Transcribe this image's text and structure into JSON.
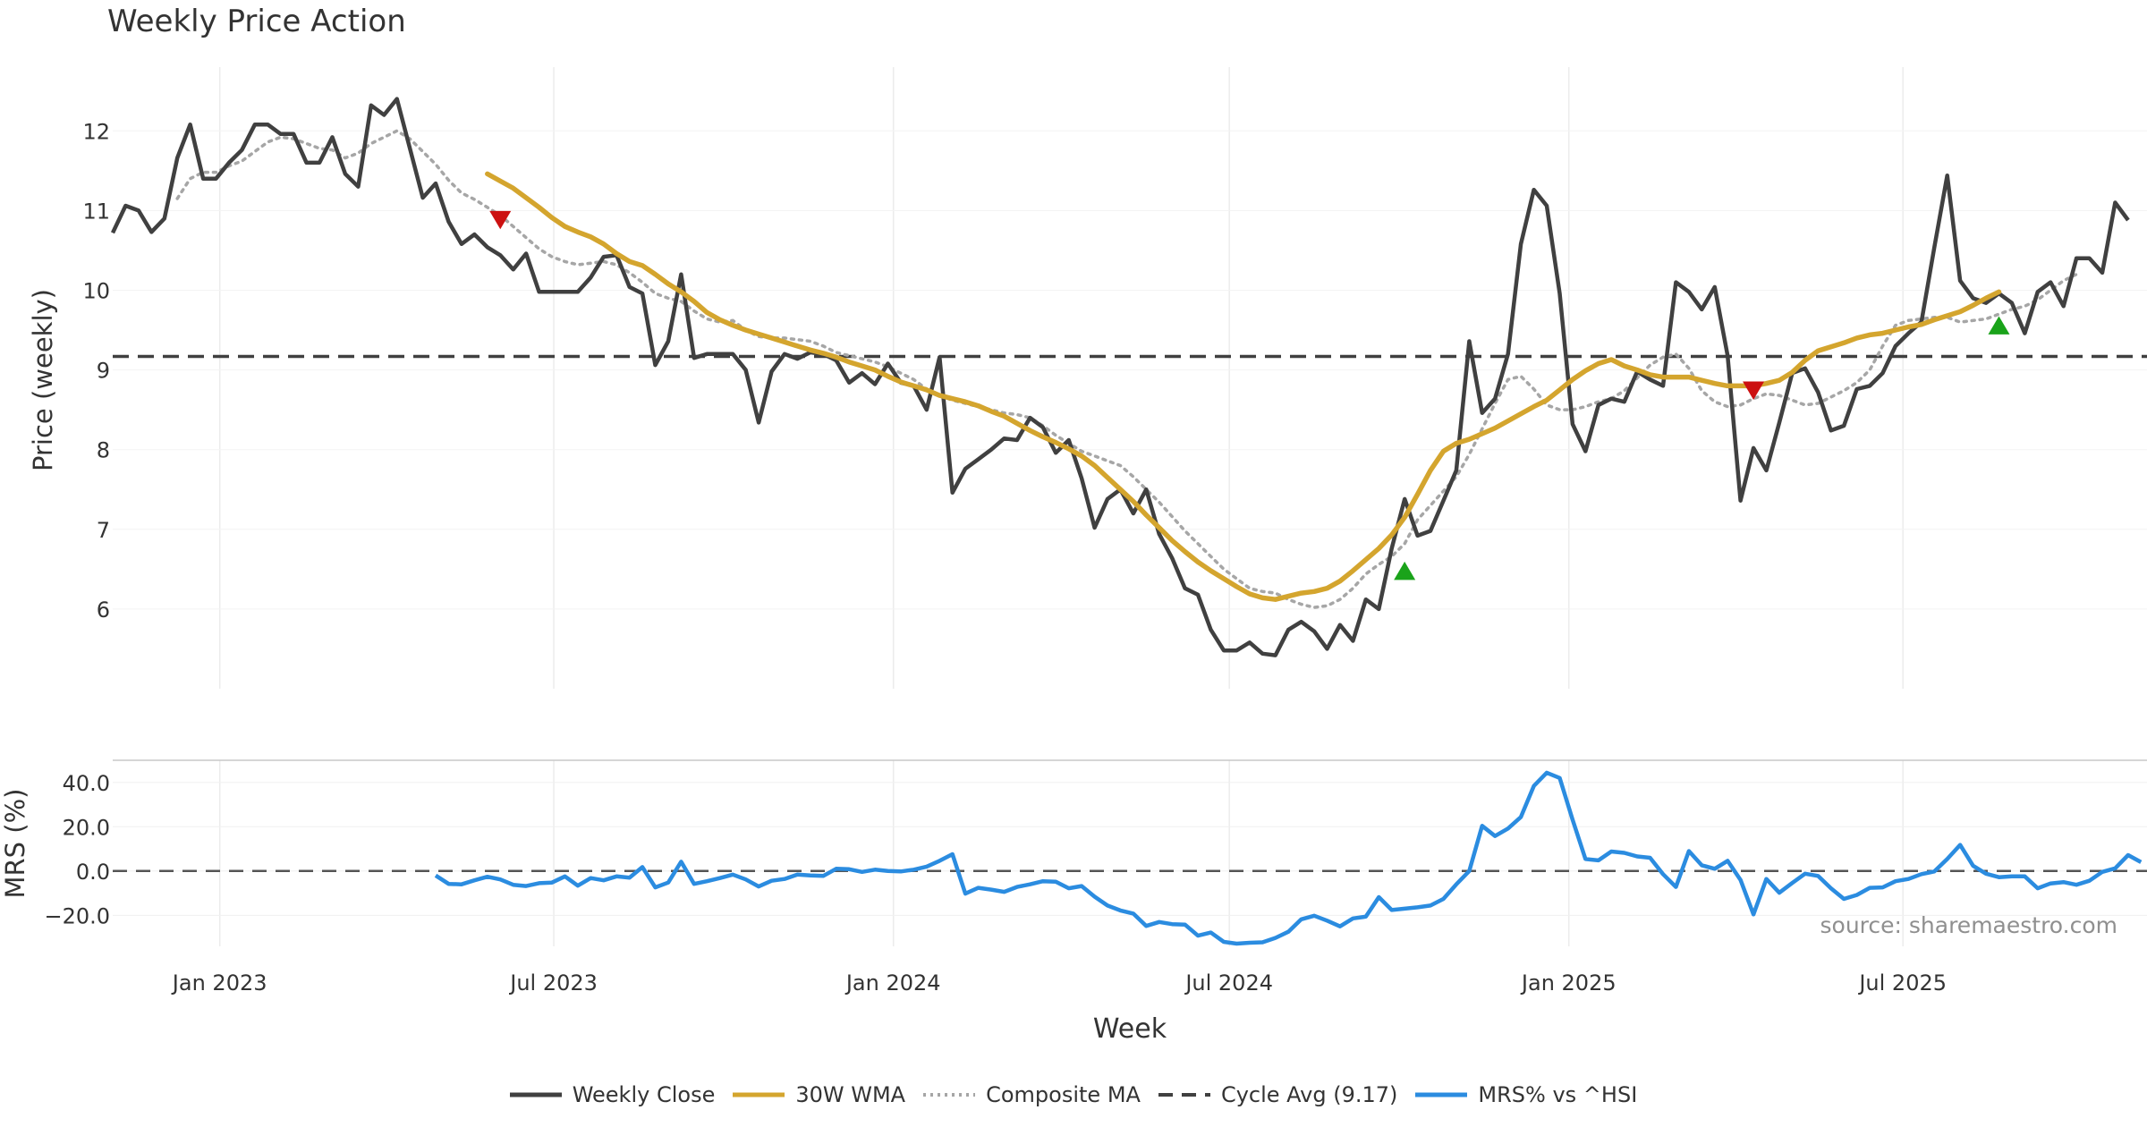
{
  "chart_data": [
    {
      "type": "line",
      "title": "Weekly Price Action",
      "ylabel": "Price (weekly)",
      "ylim": [
        5.0,
        12.8
      ],
      "yticks": [
        6,
        7,
        8,
        9,
        10,
        11,
        12
      ],
      "grid": true,
      "x_start": "2022-11-04",
      "x_step_days": 7,
      "series": [
        {
          "name": "Weekly Close",
          "color": "#404040",
          "style": "solid",
          "values": [
            10.72,
            11.06,
            11.0,
            10.73,
            10.9,
            11.66,
            12.08,
            11.4,
            11.4,
            11.6,
            11.76,
            12.08,
            12.08,
            11.96,
            11.96,
            11.6,
            11.6,
            11.92,
            11.46,
            11.3,
            12.32,
            12.2,
            12.4,
            11.78,
            11.16,
            11.34,
            10.86,
            10.58,
            10.7,
            10.54,
            10.44,
            10.26,
            10.46,
            9.98,
            9.98,
            9.98,
            9.98,
            10.16,
            10.42,
            10.44,
            10.04,
            9.96,
            9.06,
            9.36,
            10.2,
            9.15,
            9.2,
            9.2,
            9.2,
            9.0,
            8.34,
            8.98,
            9.2,
            9.14,
            9.22,
            9.2,
            9.12,
            8.84,
            8.96,
            8.82,
            9.08,
            8.84,
            8.8,
            8.5,
            9.16,
            7.46,
            7.76,
            7.88,
            8.0,
            8.14,
            8.12,
            8.4,
            8.28,
            7.96,
            8.12,
            7.64,
            7.02,
            7.38,
            7.5,
            7.2,
            7.5,
            6.94,
            6.64,
            6.26,
            6.18,
            5.74,
            5.48,
            5.48,
            5.58,
            5.44,
            5.42,
            5.74,
            5.84,
            5.72,
            5.5,
            5.8,
            5.6,
            6.12,
            6.0,
            6.76,
            7.38,
            6.92,
            6.98,
            7.36,
            7.74,
            9.36,
            8.46,
            8.64,
            9.2,
            10.58,
            11.26,
            11.06,
            9.96,
            8.32,
            7.98,
            8.56,
            8.64,
            8.6,
            8.98,
            8.88,
            8.8,
            10.1,
            9.98,
            9.76,
            10.04,
            9.18,
            7.36,
            8.02,
            7.74,
            8.34,
            8.96,
            9.02,
            8.72,
            8.24,
            8.3,
            8.76,
            8.8,
            8.96,
            9.3,
            9.46,
            9.6,
            10.54,
            11.44,
            10.12,
            9.9,
            9.84,
            9.96,
            9.84,
            9.46,
            9.98,
            10.1,
            9.8,
            10.4,
            10.4,
            10.22,
            11.1,
            10.88
          ]
        },
        {
          "name": "30W WMA",
          "color": "#d4a52e",
          "style": "solid",
          "values": [
            null,
            null,
            null,
            null,
            null,
            null,
            null,
            null,
            null,
            null,
            null,
            null,
            null,
            null,
            null,
            null,
            null,
            null,
            null,
            null,
            null,
            null,
            null,
            null,
            null,
            null,
            null,
            null,
            null,
            11.46,
            11.37,
            11.28,
            11.16,
            11.04,
            10.91,
            10.8,
            10.73,
            10.67,
            10.58,
            10.46,
            10.36,
            10.31,
            10.2,
            10.08,
            9.98,
            9.86,
            9.72,
            9.63,
            9.56,
            9.5,
            9.45,
            9.4,
            9.35,
            9.3,
            9.25,
            9.21,
            9.16,
            9.1,
            9.05,
            9.0,
            8.92,
            8.85,
            8.8,
            8.75,
            8.68,
            8.64,
            8.6,
            8.55,
            8.48,
            8.42,
            8.33,
            8.24,
            8.16,
            8.09,
            8.01,
            7.92,
            7.8,
            7.65,
            7.5,
            7.35,
            7.18,
            7.02,
            6.86,
            6.72,
            6.59,
            6.48,
            6.38,
            6.28,
            6.19,
            6.14,
            6.12,
            6.16,
            6.2,
            6.22,
            6.26,
            6.35,
            6.48,
            6.62,
            6.76,
            6.93,
            7.15,
            7.44,
            7.74,
            7.98,
            8.08,
            8.13,
            8.2,
            8.27,
            8.36,
            8.45,
            8.54,
            8.62,
            8.75,
            8.88,
            8.99,
            9.08,
            9.13,
            9.05,
            9.0,
            8.94,
            8.91,
            8.91,
            8.91,
            8.87,
            8.83,
            8.8,
            8.8,
            8.8,
            8.83,
            8.87,
            8.97,
            9.12,
            9.24,
            9.29,
            9.34,
            9.4,
            9.44,
            9.46,
            9.5,
            9.54,
            9.57,
            9.63,
            9.68,
            9.73,
            9.81,
            9.9,
            9.98
          ]
        },
        {
          "name": "Composite MA",
          "color": "#a6a6a6",
          "style": "dotted",
          "values": [
            null,
            null,
            null,
            null,
            null,
            11.15,
            11.4,
            11.48,
            11.48,
            11.56,
            11.62,
            11.74,
            11.86,
            11.92,
            11.9,
            11.84,
            11.78,
            11.76,
            11.66,
            11.72,
            11.84,
            11.92,
            12.0,
            11.9,
            11.74,
            11.58,
            11.38,
            11.22,
            11.14,
            11.04,
            10.94,
            10.8,
            10.66,
            10.52,
            10.42,
            10.36,
            10.32,
            10.34,
            10.36,
            10.32,
            10.22,
            10.1,
            9.96,
            9.9,
            9.86,
            9.74,
            9.64,
            9.6,
            9.62,
            9.5,
            9.42,
            9.4,
            9.4,
            9.38,
            9.36,
            9.3,
            9.22,
            9.18,
            9.14,
            9.1,
            9.04,
            8.96,
            8.88,
            8.76,
            8.68,
            8.62,
            8.58,
            8.54,
            8.5,
            8.46,
            8.44,
            8.4,
            8.3,
            8.18,
            8.08,
            7.98,
            7.92,
            7.86,
            7.8,
            7.66,
            7.5,
            7.34,
            7.16,
            6.98,
            6.82,
            6.66,
            6.5,
            6.38,
            6.26,
            6.22,
            6.2,
            6.12,
            6.06,
            6.02,
            6.04,
            6.12,
            6.26,
            6.44,
            6.56,
            6.66,
            6.82,
            7.12,
            7.3,
            7.48,
            7.66,
            7.94,
            8.26,
            8.58,
            8.88,
            8.92,
            8.76,
            8.56,
            8.5,
            8.5,
            8.54,
            8.6,
            8.64,
            8.74,
            8.9,
            9.06,
            9.16,
            9.2,
            9.02,
            8.74,
            8.6,
            8.54,
            8.56,
            8.64,
            8.7,
            8.68,
            8.62,
            8.56,
            8.58,
            8.66,
            8.74,
            8.84,
            9.0,
            9.3,
            9.56,
            9.62,
            9.64,
            9.66,
            9.66,
            9.6,
            9.62,
            9.64,
            9.7,
            9.76,
            9.8,
            9.88,
            10.0,
            10.12,
            10.2
          ]
        },
        {
          "name": "Cycle Avg (9.17)",
          "color": "#404040",
          "style": "dashed",
          "value": 9.17
        }
      ],
      "markers": [
        {
          "type": "sell",
          "color": "#cc1111",
          "week_index": 30,
          "value": 10.88
        },
        {
          "type": "buy",
          "color": "#1aa31a",
          "week_index": 100,
          "value": 6.48
        },
        {
          "type": "sell",
          "color": "#cc1111",
          "week_index": 127,
          "value": 8.74
        },
        {
          "type": "buy",
          "color": "#1aa31a",
          "week_index": 146,
          "value": 9.56
        }
      ]
    },
    {
      "type": "line",
      "ylabel": "MRS (%)",
      "ylim": [
        -34,
        50
      ],
      "yticks": [
        -20.0,
        0.0,
        20.0,
        40.0
      ],
      "ytick_labels": [
        "−20.0",
        "0.0",
        "20.0",
        "40.0"
      ],
      "grid": true,
      "reference_line": 0,
      "x_start": "2022-11-04",
      "x_step_days": 7,
      "series": [
        {
          "name": "MRS% vs ^HSI",
          "color": "#2b8ce0",
          "style": "solid",
          "values": [
            null,
            null,
            null,
            null,
            null,
            null,
            null,
            null,
            null,
            null,
            null,
            null,
            null,
            null,
            null,
            null,
            null,
            null,
            null,
            null,
            null,
            null,
            null,
            null,
            null,
            -2,
            -5.8,
            -6,
            -4.2,
            -2.6,
            -3.8,
            -6.2,
            -6.8,
            -5.5,
            -5.2,
            -2.4,
            -6.6,
            -3.2,
            -4.2,
            -2.4,
            -3,
            1.8,
            -7.4,
            -5.2,
            4.2,
            -5.8,
            -4.6,
            -3.2,
            -1.6,
            -3.8,
            -7,
            -4.4,
            -3.6,
            -1.6,
            -2,
            -2.2,
            1,
            0.8,
            -0.4,
            0.6,
            0,
            -0.2,
            0.6,
            2,
            4.6,
            7.6,
            -10.2,
            -7.6,
            -8.4,
            -9.4,
            -7.2,
            -6,
            -4.6,
            -4.8,
            -7.8,
            -6.8,
            -11.6,
            -15.6,
            -17.8,
            -19.2,
            -24.8,
            -23,
            -24,
            -24.2,
            -29.2,
            -27.8,
            -32,
            -32.8,
            -32.4,
            -32.2,
            -30.2,
            -27.4,
            -21.8,
            -20.2,
            -22.4,
            -25,
            -21.4,
            -20.6,
            -11.8,
            -17.6,
            -17,
            -16.4,
            -15.6,
            -12.6,
            -6,
            0,
            20.4,
            15.8,
            19.2,
            24.4,
            38.4,
            44.4,
            42,
            23.2,
            5.4,
            4.8,
            8.8,
            8.2,
            6.6,
            6,
            -1.4,
            -7.2,
            9,
            2.6,
            1,
            4.6,
            -4,
            -19.6,
            -3.6,
            -9.8,
            -5.4,
            -1.2,
            -2.2,
            -7.8,
            -12.6,
            -10.8,
            -7.6,
            -7.4,
            -4.6,
            -3.6,
            -1.4,
            -0.2,
            5.4,
            11.8,
            2.4,
            -1.2,
            -2.8,
            -2.4,
            -2.4,
            -7.8,
            -5.6,
            -5,
            -6.2,
            -4.4,
            -0.4,
            1.2,
            7.2,
            4
          ]
        }
      ],
      "source_note": "source: sharemaestro.com"
    }
  ],
  "xaxis": {
    "label": "Week",
    "ticks": [
      {
        "label": "Jan 2023",
        "date": "2023-01-01"
      },
      {
        "label": "Jul 2023",
        "date": "2023-07-01"
      },
      {
        "label": "Jan 2024",
        "date": "2024-01-01"
      },
      {
        "label": "Jul 2024",
        "date": "2024-07-01"
      },
      {
        "label": "Jan 2025",
        "date": "2025-01-01"
      },
      {
        "label": "Jul 2025",
        "date": "2025-07-01"
      }
    ]
  },
  "legend": {
    "placement": "bottom-center",
    "items": [
      {
        "label": "Weekly Close",
        "color": "#404040",
        "style": "solid"
      },
      {
        "label": "30W WMA",
        "color": "#d4a52e",
        "style": "solid"
      },
      {
        "label": "Composite MA",
        "color": "#a6a6a6",
        "style": "dotted"
      },
      {
        "label": "Cycle Avg (9.17)",
        "color": "#404040",
        "style": "dashed"
      },
      {
        "label": "MRS% vs ^HSI",
        "color": "#2b8ce0",
        "style": "solid"
      }
    ]
  }
}
